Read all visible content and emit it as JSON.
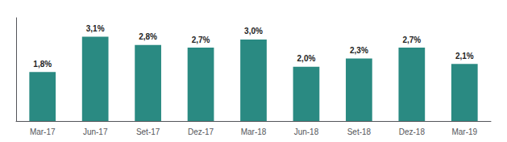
{
  "chart_data": {
    "type": "bar",
    "categories": [
      "Mar-17",
      "Jun-17",
      "Set-17",
      "Dez-17",
      "Mar-18",
      "Jun-18",
      "Set-18",
      "Dez-18",
      "Mar-19"
    ],
    "values": [
      1.8,
      3.1,
      2.8,
      2.7,
      3.0,
      2.0,
      2.3,
      2.7,
      2.1
    ],
    "value_labels": [
      "1,8%",
      "3,1%",
      "2,8%",
      "2,7%",
      "3,0%",
      "2,0%",
      "2,3%",
      "2,7%",
      "2,1%"
    ],
    "color": "#2a8a82",
    "ylim": [
      0,
      3.8
    ],
    "grid": false,
    "data_labels": true,
    "tick_labels": "x"
  }
}
